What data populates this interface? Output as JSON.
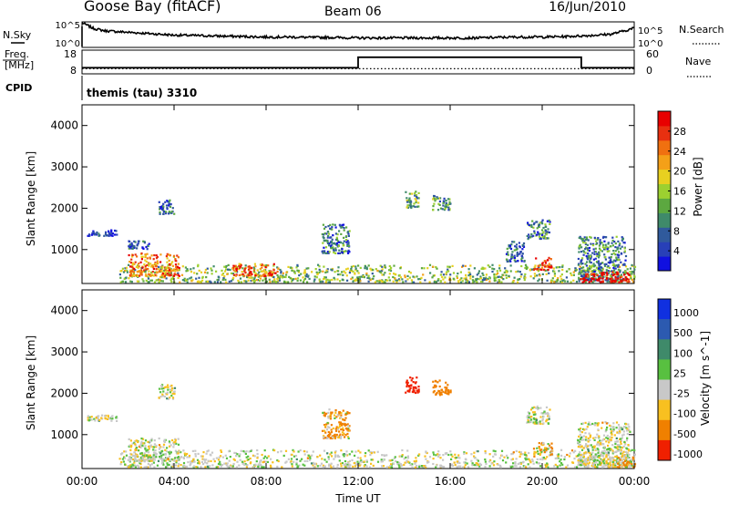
{
  "header": {
    "station": "Goose Bay (fitACF)",
    "beam": "Beam 06",
    "date": "16/Jun/2010"
  },
  "status_panels": {
    "nsky_label": "N.Sky",
    "nsearch_label": "N.Search",
    "freq_label_line1": "Freq.",
    "freq_label_line2": "[MHz]",
    "nave_label": "Nave",
    "cpid_label": "CPID",
    "cpid_text": "themis (tau) 3310",
    "noise_ticks": [
      "10^5",
      "10^0"
    ],
    "freq_ticks": [
      "18",
      "8"
    ],
    "nave_ticks": [
      "60",
      "0"
    ]
  },
  "colors": {
    "power_scale": [
      "#1010e0",
      "#2840b8",
      "#305a9c",
      "#3f8a6a",
      "#5ca840",
      "#9cd030",
      "#e8d020",
      "#f4a018",
      "#f07010",
      "#e83010",
      "#e80000"
    ],
    "velocity_scale": [
      "#1030e0",
      "#2c5ab0",
      "#3f8a6a",
      "#58c040",
      "#c8c8c8",
      "#f8c020",
      "#f08000",
      "#f02000"
    ],
    "axis": "#000000"
  },
  "chart_data": [
    {
      "type": "line",
      "name": "noise-panel",
      "x": [
        0,
        0.5,
        1,
        2,
        3,
        4,
        5,
        6,
        7,
        8,
        9,
        10,
        11,
        12,
        13,
        14,
        15,
        16,
        17,
        18,
        19,
        20,
        21,
        22,
        23,
        23.5,
        24
      ],
      "series": [
        {
          "name": "N.Sky",
          "values": [
            5,
            3.8,
            3.3,
            3.0,
            2.7,
            2.4,
            2.3,
            2.2,
            2.1,
            2.0,
            2.0,
            1.9,
            1.9,
            1.8,
            1.8,
            1.8,
            1.8,
            1.8,
            1.8,
            1.9,
            2.0,
            2.0,
            2.1,
            2.3,
            2.6,
            3.2,
            3.9
          ]
        }
      ],
      "ylabel_left": "N.Sky",
      "ylabel_right": "N.Search",
      "ylim": [
        0,
        5
      ],
      "ytick_labels": [
        "10^0",
        "10^5"
      ]
    },
    {
      "type": "line",
      "name": "freq-nave-panel",
      "x": [
        0,
        12,
        12,
        21.7,
        21.7,
        24
      ],
      "series": [
        {
          "name": "Freq.",
          "values": [
            10.5,
            10.5,
            15.5,
            15.5,
            10.5,
            10.5
          ]
        },
        {
          "name": "Nave",
          "values": [
            12,
            12,
            12,
            12,
            12,
            12
          ]
        }
      ],
      "ylim_left": [
        8,
        18
      ],
      "ylim_right": [
        0,
        60
      ]
    },
    {
      "type": "heatmap",
      "name": "power",
      "xlabel": "Time UT",
      "ylabel": "Slant Range [km]",
      "x_ticks": [
        "00:00",
        "04:00",
        "08:00",
        "12:00",
        "16:00",
        "20:00",
        "00:00"
      ],
      "xlim": [
        0,
        24
      ],
      "ylim": [
        180,
        4500
      ],
      "y_ticks": [
        1000,
        2000,
        3000,
        4000
      ],
      "colorbar_label": "Power [dB]",
      "colorbar_ticks": [
        "4",
        "8",
        "12",
        "16",
        "20",
        "24",
        "28"
      ],
      "scatter_regions": [
        {
          "t0": 1.6,
          "t1": 24,
          "r0": 200,
          "r1": 620,
          "level": 0.45
        },
        {
          "t0": 2.0,
          "t1": 4.2,
          "r0": 350,
          "r1": 900,
          "level": 0.75
        },
        {
          "t0": 6.5,
          "t1": 8.5,
          "r0": 350,
          "r1": 650,
          "level": 0.8
        },
        {
          "t0": 0.2,
          "t1": 1.5,
          "r0": 1320,
          "r1": 1460,
          "level": 0.1
        },
        {
          "t0": 1.9,
          "t1": 2.9,
          "r0": 1000,
          "r1": 1200,
          "level": 0.15
        },
        {
          "t0": 3.3,
          "t1": 4.0,
          "r0": 1850,
          "r1": 2200,
          "level": 0.2
        },
        {
          "t0": 10.4,
          "t1": 11.6,
          "r0": 900,
          "r1": 1600,
          "level": 0.25
        },
        {
          "t0": 14.0,
          "t1": 14.6,
          "r0": 2000,
          "r1": 2400,
          "level": 0.4
        },
        {
          "t0": 15.2,
          "t1": 16.0,
          "r0": 1950,
          "r1": 2300,
          "level": 0.35
        },
        {
          "t0": 18.4,
          "t1": 19.2,
          "r0": 700,
          "r1": 1200,
          "level": 0.2
        },
        {
          "t0": 19.3,
          "t1": 20.3,
          "r0": 1250,
          "r1": 1700,
          "level": 0.3
        },
        {
          "t0": 19.6,
          "t1": 20.4,
          "r0": 500,
          "r1": 800,
          "level": 0.85
        },
        {
          "t0": 21.5,
          "t1": 23.6,
          "r0": 250,
          "r1": 1300,
          "level": 0.3
        },
        {
          "t0": 21.6,
          "t1": 23.8,
          "r0": 200,
          "r1": 450,
          "level": 1.0
        }
      ]
    },
    {
      "type": "heatmap",
      "name": "velocity",
      "xlabel": "Time UT",
      "ylabel": "Slant Range [km]",
      "x_ticks": [
        "00:00",
        "04:00",
        "08:00",
        "12:00",
        "16:00",
        "20:00",
        "00:00"
      ],
      "xlim": [
        0,
        24
      ],
      "ylim": [
        180,
        4500
      ],
      "y_ticks": [
        1000,
        2000,
        3000,
        4000
      ],
      "colorbar_label": "Velocity [m s^-1]",
      "colorbar_ticks": [
        "1000",
        "500",
        "100",
        "25",
        "-25",
        "-100",
        "-500",
        "-1000"
      ],
      "scatter_regions": [
        {
          "t0": 1.6,
          "t1": 24,
          "r0": 200,
          "r1": 620,
          "v": 0
        },
        {
          "t0": 2.0,
          "t1": 4.2,
          "r0": 350,
          "r1": 900,
          "v": 0
        },
        {
          "t0": 0.2,
          "t1": 1.5,
          "r0": 1320,
          "r1": 1460,
          "v": 0
        },
        {
          "t0": 3.3,
          "t1": 4.0,
          "r0": 1850,
          "r1": 2200,
          "v": 0
        },
        {
          "t0": 10.4,
          "t1": 11.6,
          "r0": 900,
          "r1": 1600,
          "v": -150
        },
        {
          "t0": 14.0,
          "t1": 14.6,
          "r0": 2000,
          "r1": 2400,
          "v": -800
        },
        {
          "t0": 15.2,
          "t1": 16.0,
          "r0": 1950,
          "r1": 2300,
          "v": -300
        },
        {
          "t0": 19.3,
          "t1": 20.3,
          "r0": 1250,
          "r1": 1700,
          "v": 0
        },
        {
          "t0": 19.6,
          "t1": 20.4,
          "r0": 500,
          "r1": 800,
          "v": -120
        },
        {
          "t0": 21.5,
          "t1": 23.8,
          "r0": 250,
          "r1": 1300,
          "v": 0
        },
        {
          "t0": 23.2,
          "t1": 24,
          "r0": 200,
          "r1": 450,
          "v": -150
        }
      ]
    }
  ]
}
